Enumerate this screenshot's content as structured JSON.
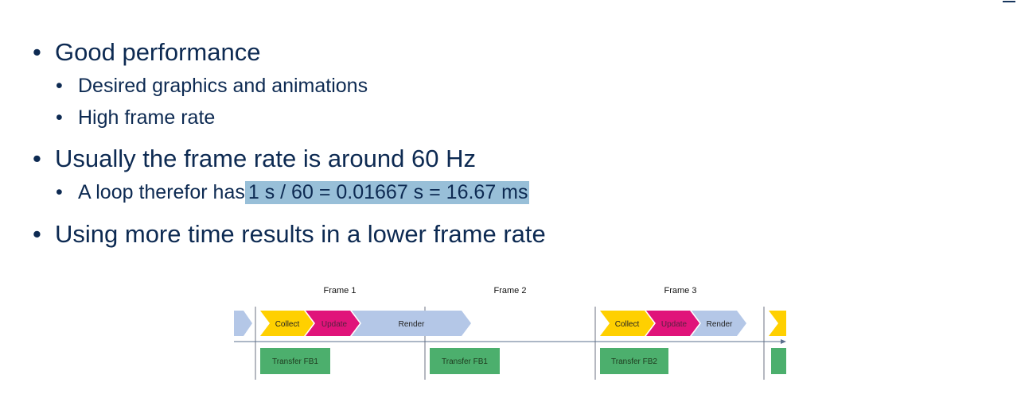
{
  "bullets": [
    {
      "level": 1,
      "text": "Good performance"
    },
    {
      "level": 2,
      "text": "Desired graphics and animations"
    },
    {
      "level": 2,
      "text": "High frame rate"
    },
    {
      "level": 1,
      "text": "Usually the frame rate is around 60 Hz"
    },
    {
      "level": 2,
      "text_before": "A loop therefor has",
      "highlight": "1 s / 60 = 0.01667 s = 16.67 ms"
    },
    {
      "level": 1,
      "text": "Using more time results in a lower frame rate"
    }
  ],
  "bullet_glyph": "•",
  "diagram": {
    "frames": [
      "Frame 1",
      "Frame 2",
      "Frame 3"
    ],
    "stages": {
      "collect": "Collect",
      "update": "Update",
      "render": "Render"
    },
    "transfers": [
      "Transfer FB1",
      "Transfer FB1",
      "Transfer FB2"
    ],
    "colors": {
      "collect": "#ffd000",
      "update": "#e0147a",
      "render": "#b4c7e7",
      "transfer": "#4caf6d",
      "axis": "#5a6f8c",
      "frame_line": "#6b7280"
    }
  }
}
